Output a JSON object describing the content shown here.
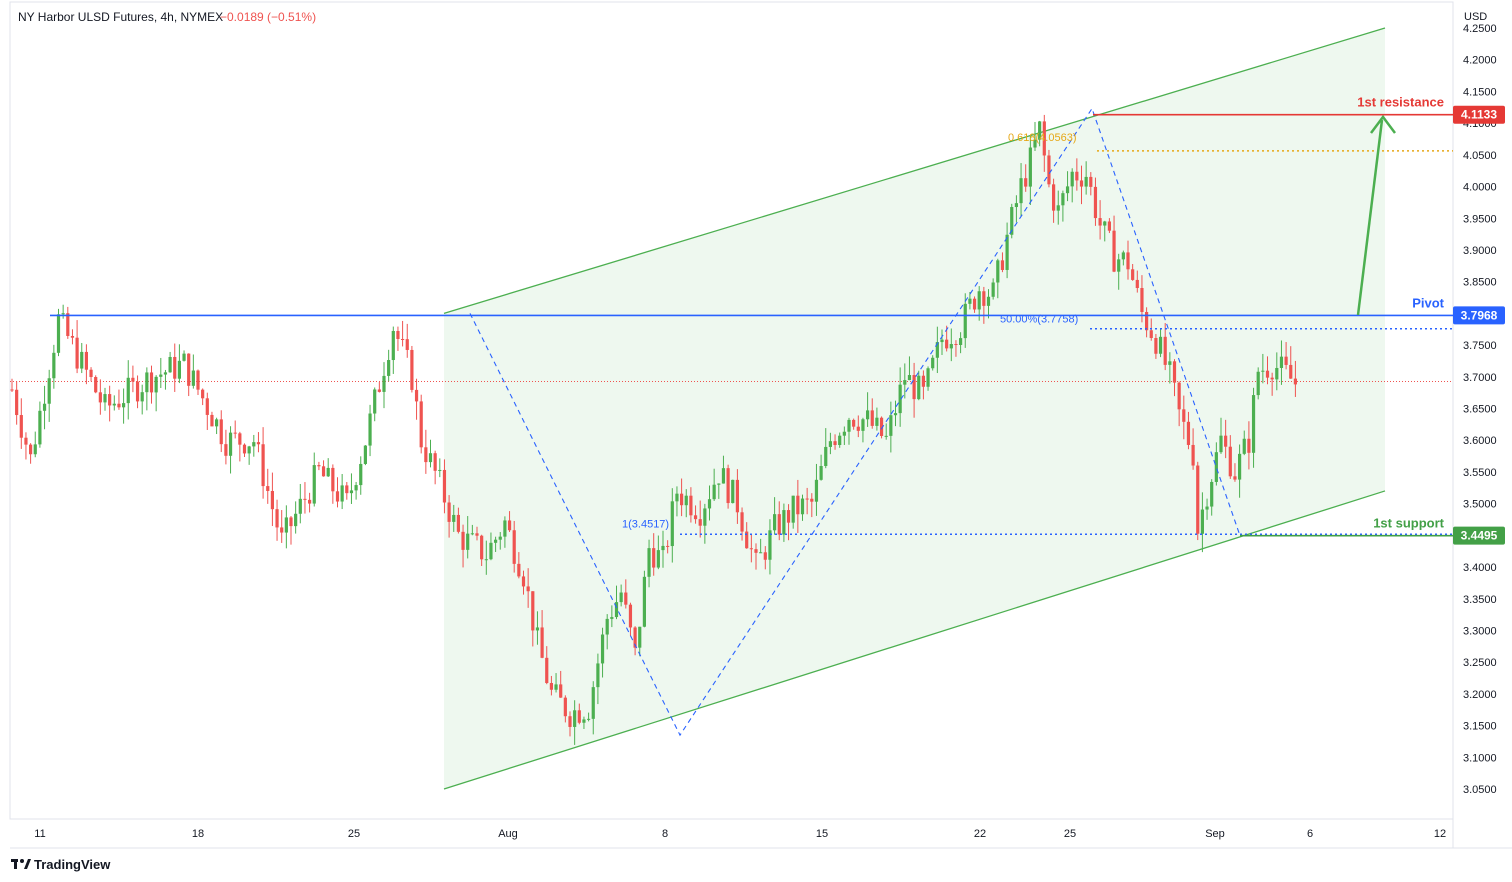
{
  "header": {
    "symbol": "NY Harbor ULSD Futures, 4h, NYMEX",
    "change": "−0.0189 (−0.51%)"
  },
  "currency": "USD",
  "brand": "TradingView",
  "colors": {
    "up": "#26a69a",
    "up_candle": "#4caf50",
    "down": "#ef5350",
    "channel": "#4caf50",
    "channel_fill": "#e8f5e9",
    "pivot": "#2962ff",
    "resistance": "#e53935",
    "support": "#43a047",
    "fib": "#2962ff",
    "fib_gold": "#e6a817"
  },
  "chart_data": {
    "type": "candlestick",
    "title": "NY Harbor ULSD Futures, 4h, NYMEX",
    "ylim": [
      3.0,
      4.27
    ],
    "y_ticks": [
      "4.2500",
      "4.2000",
      "4.1500",
      "4.1000",
      "4.0500",
      "4.0000",
      "3.9500",
      "3.9000",
      "3.8500",
      "3.8000",
      "3.7500",
      "3.7000",
      "3.6500",
      "3.6000",
      "3.5500",
      "3.5000",
      "3.4500",
      "3.4000",
      "3.3500",
      "3.3000",
      "3.2500",
      "3.2000",
      "3.1500",
      "3.1000",
      "3.0500"
    ],
    "x_ticks": [
      "11",
      "18",
      "25",
      "Aug",
      "8",
      "15",
      "22",
      "25",
      "Sep",
      "6",
      "12"
    ],
    "price_anchors": [
      {
        "bar": 0,
        "price": 3.68
      },
      {
        "bar": 4,
        "price": 3.57
      },
      {
        "bar": 10,
        "price": 3.79
      },
      {
        "bar": 20,
        "price": 3.65
      },
      {
        "bar": 30,
        "price": 3.7
      },
      {
        "bar": 37,
        "price": 3.72
      },
      {
        "bar": 46,
        "price": 3.6
      },
      {
        "bar": 52,
        "price": 3.6
      },
      {
        "bar": 58,
        "price": 3.44
      },
      {
        "bar": 66,
        "price": 3.55
      },
      {
        "bar": 72,
        "price": 3.5
      },
      {
        "bar": 76,
        "price": 3.6
      },
      {
        "bar": 82,
        "price": 3.78
      },
      {
        "bar": 86,
        "price": 3.7
      },
      {
        "bar": 88,
        "price": 3.6
      },
      {
        "bar": 92,
        "price": 3.53
      },
      {
        "bar": 96,
        "price": 3.45
      },
      {
        "bar": 102,
        "price": 3.42
      },
      {
        "bar": 106,
        "price": 3.47
      },
      {
        "bar": 110,
        "price": 3.39
      },
      {
        "bar": 113,
        "price": 3.28
      },
      {
        "bar": 116,
        "price": 3.2
      },
      {
        "bar": 120,
        "price": 3.17
      },
      {
        "bar": 124,
        "price": 3.18
      },
      {
        "bar": 128,
        "price": 3.32
      },
      {
        "bar": 131,
        "price": 3.36
      },
      {
        "bar": 134,
        "price": 3.26
      },
      {
        "bar": 137,
        "price": 3.43
      },
      {
        "bar": 140,
        "price": 3.41
      },
      {
        "bar": 143,
        "price": 3.52
      },
      {
        "bar": 148,
        "price": 3.49
      },
      {
        "bar": 152,
        "price": 3.55
      },
      {
        "bar": 156,
        "price": 3.5
      },
      {
        "bar": 160,
        "price": 3.4
      },
      {
        "bar": 164,
        "price": 3.46
      },
      {
        "bar": 168,
        "price": 3.49
      },
      {
        "bar": 172,
        "price": 3.5
      },
      {
        "bar": 176,
        "price": 3.6
      },
      {
        "bar": 180,
        "price": 3.64
      },
      {
        "bar": 184,
        "price": 3.63
      },
      {
        "bar": 188,
        "price": 3.6
      },
      {
        "bar": 192,
        "price": 3.7
      },
      {
        "bar": 196,
        "price": 3.67
      },
      {
        "bar": 200,
        "price": 3.76
      },
      {
        "bar": 204,
        "price": 3.78
      },
      {
        "bar": 208,
        "price": 3.84
      },
      {
        "bar": 211,
        "price": 3.83
      },
      {
        "bar": 214,
        "price": 3.92
      },
      {
        "bar": 217,
        "price": 4.0
      },
      {
        "bar": 219,
        "price": 4.04
      },
      {
        "bar": 221,
        "price": 4.09
      },
      {
        "bar": 223,
        "price": 4.0
      },
      {
        "bar": 225,
        "price": 3.96
      },
      {
        "bar": 228,
        "price": 4.02
      },
      {
        "bar": 231,
        "price": 4.02
      },
      {
        "bar": 234,
        "price": 3.94
      },
      {
        "bar": 237,
        "price": 3.89
      },
      {
        "bar": 240,
        "price": 3.88
      },
      {
        "bar": 243,
        "price": 3.8
      },
      {
        "bar": 246,
        "price": 3.76
      },
      {
        "bar": 249,
        "price": 3.7
      },
      {
        "bar": 251,
        "price": 3.64
      },
      {
        "bar": 254,
        "price": 3.58
      },
      {
        "bar": 255,
        "price": 3.46
      },
      {
        "bar": 257,
        "price": 3.52
      },
      {
        "bar": 260,
        "price": 3.6
      },
      {
        "bar": 263,
        "price": 3.55
      },
      {
        "bar": 266,
        "price": 3.6
      },
      {
        "bar": 268,
        "price": 3.71
      },
      {
        "bar": 271,
        "price": 3.72
      },
      {
        "bar": 273,
        "price": 3.71
      },
      {
        "bar": 276,
        "price": 3.69
      }
    ],
    "channel": {
      "upper": [
        {
          "date": "Jul 29",
          "price": 3.8
        },
        {
          "date": "Sep 9",
          "price": 4.25
        }
      ],
      "lower": [
        {
          "date": "Jul 29",
          "price": 3.05
        },
        {
          "date": "Sep 9",
          "price": 3.52
        }
      ]
    },
    "levels": [
      {
        "name": "1st resistance",
        "value": "4.1133",
        "price": 4.1133
      },
      {
        "name": "Pivot",
        "value": "3.7968",
        "price": 3.7968
      },
      {
        "name": "1st support",
        "value": "3.4495",
        "price": 3.4495
      }
    ],
    "fib_labels": [
      {
        "text": "0.618(4.0563)",
        "price": 4.0563
      },
      {
        "text": "50.00%(3.7758)",
        "price": 3.7758
      },
      {
        "text": "1(3.4517)",
        "price": 3.4517
      }
    ],
    "last_close": 3.6925
  }
}
